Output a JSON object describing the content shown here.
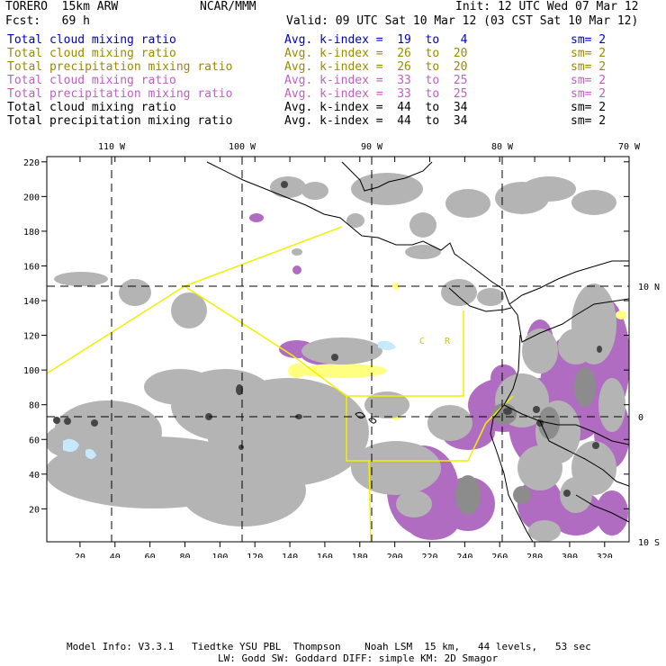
{
  "header": {
    "model": "TORERO  15km ARW",
    "org": "NCAR/MMM",
    "init": "Init: 12 UTC Wed 07 Mar 12",
    "fcst": "Fcst:   69 h",
    "valid": "Valid: 09 UTC Sat 10 Mar 12 (03 CST Sat 10 Mar 12)"
  },
  "fields": [
    {
      "name": "Total cloud mixing ratio",
      "avg": "Avg. k-index =  19  to   4",
      "sm": "sm= 2",
      "color": "#0000c8"
    },
    {
      "name": "Total cloud mixing ratio",
      "avg": "Avg. k-index =  26  to  20",
      "sm": "sm= 2",
      "color": "#9a8a00"
    },
    {
      "name": "Total precipitation mixing ratio",
      "avg": "Avg. k-index =  26  to  20",
      "sm": "sm= 2",
      "color": "#9a8a00"
    },
    {
      "name": "Total cloud mixing ratio",
      "avg": "Avg. k-index =  33  to  25",
      "sm": "sm= 2",
      "color": "#c060c0"
    },
    {
      "name": "Total precipitation mixing ratio",
      "avg": "Avg. k-index =  33  to  25",
      "sm": "sm= 2",
      "color": "#c060c0"
    },
    {
      "name": "Total cloud mixing ratio",
      "avg": "Avg. k-index =  44  to  34",
      "sm": "sm= 2",
      "color": "#000000"
    },
    {
      "name": "Total precipitation mixing ratio",
      "avg": "Avg. k-index =  44  to  34",
      "sm": "sm= 2",
      "color": "#000000"
    }
  ],
  "map": {
    "lon_labels": [
      "110 W",
      "100 W",
      "90 W",
      "80 W",
      "70 W"
    ],
    "lat_labels": [
      "10 N",
      "0",
      "10 S"
    ],
    "x_ticks": [
      "20",
      "40",
      "60",
      "80",
      "100",
      "120",
      "140",
      "160",
      "180",
      "200",
      "220",
      "240",
      "260",
      "280",
      "300",
      "320"
    ],
    "y_ticks": [
      "20",
      "40",
      "60",
      "80",
      "100",
      "120",
      "140",
      "160",
      "180",
      "200",
      "220"
    ],
    "region_labels": [
      "C",
      "R"
    ],
    "colors": {
      "gray_light": "#b4b4b4",
      "gray_mid": "#8c8c8c",
      "gray_dark": "#464646",
      "purple": "#b06cc0",
      "yellow": "#ffff80",
      "light_blue": "#c8e8ff",
      "boundary": "#f0f000"
    }
  },
  "footer": {
    "line1": "Model Info: V3.3.1   Tiedtke YSU PBL  Thompson    Noah LSM  15 km,   44 levels,   53 sec",
    "line2": "LW: Godd SW: Goddard DIFF: simple KM: 2D Smagor"
  }
}
